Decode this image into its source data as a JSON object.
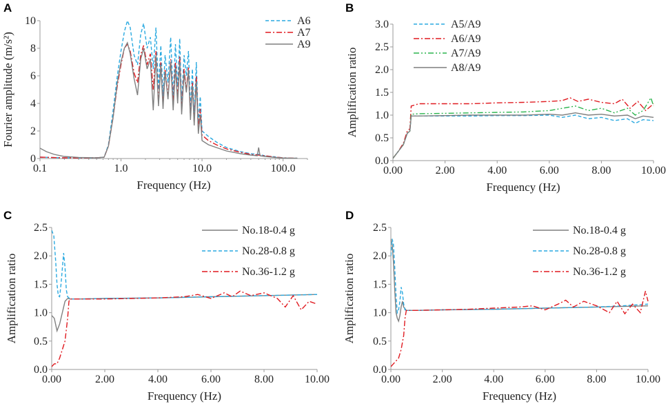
{
  "colors": {
    "gray": "#7f7f7f",
    "blue": "#29a9e0",
    "red": "#e0191f",
    "green": "#28b34b"
  },
  "chart_data": [
    {
      "panel": "A",
      "type": "line",
      "xscale": "log",
      "xlabel": "Frequency (Hz)",
      "ylabel": "Fourier amplitude (m/s²)",
      "xlim": [
        0.1,
        200
      ],
      "ylim": [
        0,
        10
      ],
      "xticks": [
        0.1,
        1,
        10,
        100
      ],
      "xtick_labels": [
        "0.1",
        "1.0",
        "10.0",
        "100.0"
      ],
      "yticks": [
        0,
        2,
        4,
        6,
        8,
        10
      ],
      "ytick_labels": [
        "0",
        "2",
        "4",
        "6",
        "8",
        "10"
      ],
      "legend_position": "top-right",
      "series": [
        {
          "name": "A6",
          "color": "#29a9e0",
          "dash": "dashed",
          "x": [
            0.1,
            0.2,
            0.5,
            0.62,
            0.7,
            0.8,
            0.9,
            1.0,
            1.1,
            1.2,
            1.3,
            1.45,
            1.6,
            1.75,
            1.9,
            2.1,
            2.3,
            2.5,
            2.7,
            2.9,
            3.1,
            3.3,
            3.5,
            3.8,
            4.1,
            4.4,
            4.7,
            5.0,
            5.3,
            5.6,
            6.0,
            6.4,
            6.8,
            7.2,
            7.6,
            8.0,
            8.5,
            9.0,
            9.5,
            10,
            12,
            15,
            20,
            30,
            40,
            50,
            60,
            80,
            100,
            150
          ],
          "y": [
            0.1,
            0.05,
            0.05,
            0.1,
            1.0,
            3.5,
            6.0,
            7.8,
            9.2,
            10.0,
            9.5,
            7.5,
            6.8,
            9.0,
            9.8,
            8.0,
            8.8,
            6.5,
            9.5,
            5.0,
            8.2,
            4.5,
            7.5,
            5.5,
            8.8,
            4.5,
            8.3,
            5.2,
            8.7,
            4.0,
            7.5,
            6.0,
            7.8,
            3.5,
            6.5,
            3.0,
            7.0,
            2.5,
            4.5,
            2.0,
            1.6,
            1.2,
            0.8,
            0.5,
            0.35,
            0.3,
            0.2,
            0.12,
            0.05,
            0.02
          ]
        },
        {
          "name": "A7",
          "color": "#e0191f",
          "dash": "dashdot",
          "x": [
            0.1,
            0.2,
            0.5,
            0.62,
            0.7,
            0.8,
            0.9,
            1.0,
            1.1,
            1.2,
            1.3,
            1.45,
            1.6,
            1.75,
            1.9,
            2.1,
            2.3,
            2.5,
            2.7,
            2.9,
            3.1,
            3.3,
            3.5,
            3.8,
            4.1,
            4.4,
            4.7,
            5.0,
            5.3,
            5.6,
            6.0,
            6.4,
            6.8,
            7.2,
            7.6,
            8.0,
            8.5,
            9.0,
            9.5,
            10,
            12,
            15,
            20,
            30,
            40,
            50,
            60,
            80,
            100,
            150
          ],
          "y": [
            0.1,
            0.05,
            0.05,
            0.1,
            0.9,
            3.0,
            5.3,
            6.8,
            8.0,
            8.3,
            7.8,
            6.2,
            5.5,
            7.5,
            8.2,
            6.8,
            7.6,
            5.0,
            7.8,
            4.0,
            7.0,
            3.8,
            6.5,
            4.5,
            7.2,
            4.0,
            7.0,
            4.3,
            7.4,
            3.5,
            6.5,
            5.0,
            6.6,
            3.0,
            5.5,
            2.6,
            6.0,
            2.2,
            3.6,
            1.7,
            1.3,
            1.0,
            0.7,
            0.45,
            0.3,
            0.25,
            0.2,
            0.1,
            0.05,
            0.02
          ]
        },
        {
          "name": "A9",
          "color": "#7f7f7f",
          "dash": "solid",
          "x": [
            0.1,
            0.12,
            0.15,
            0.2,
            0.3,
            0.5,
            0.62,
            0.7,
            0.8,
            0.9,
            1.0,
            1.1,
            1.2,
            1.3,
            1.45,
            1.6,
            1.75,
            1.9,
            2.1,
            2.3,
            2.5,
            2.7,
            2.9,
            3.1,
            3.3,
            3.5,
            3.8,
            4.1,
            4.4,
            4.7,
            5.0,
            5.3,
            5.6,
            6.0,
            6.4,
            6.8,
            7.2,
            7.6,
            8.0,
            8.5,
            9.0,
            9.5,
            10,
            12,
            15,
            20,
            30,
            40,
            48,
            50,
            52,
            60,
            80,
            100,
            150
          ],
          "y": [
            0.75,
            0.5,
            0.3,
            0.15,
            0.08,
            0.05,
            0.1,
            0.9,
            3.0,
            5.5,
            7.0,
            8.0,
            8.4,
            7.6,
            5.8,
            4.6,
            7.2,
            8.0,
            6.5,
            7.2,
            3.5,
            7.5,
            3.8,
            6.8,
            3.6,
            6.3,
            4.3,
            7.0,
            3.5,
            6.6,
            4.0,
            7.0,
            3.2,
            6.2,
            4.8,
            6.4,
            2.8,
            5.3,
            2.4,
            5.6,
            1.8,
            3.2,
            1.3,
            1.0,
            0.8,
            0.55,
            0.35,
            0.25,
            0.2,
            0.8,
            0.2,
            0.15,
            0.08,
            0.04,
            0.02
          ]
        }
      ]
    },
    {
      "panel": "B",
      "type": "line",
      "xlabel": "Frequency (Hz)",
      "ylabel": "Amplification ratio",
      "xlim": [
        0,
        10
      ],
      "ylim": [
        0,
        3
      ],
      "xticks": [
        0,
        2,
        4,
        6,
        8,
        10
      ],
      "xtick_labels": [
        "0.00",
        "2.00",
        "4.00",
        "6.00",
        "8.00",
        "10.00"
      ],
      "yticks": [
        0,
        0.5,
        1,
        1.5,
        2,
        2.5,
        3
      ],
      "ytick_labels": [
        "0.0",
        "0.5",
        "1.0",
        "1.5",
        "2.0",
        "2.5",
        "3.0"
      ],
      "legend_position": "top-left",
      "series": [
        {
          "name": "A5/A9",
          "color": "#29a9e0",
          "dash": "dashed",
          "x": [
            0,
            0.2,
            0.4,
            0.55,
            0.65,
            0.7,
            1,
            2,
            3,
            4,
            5,
            6,
            6.5,
            7,
            7.5,
            8,
            8.5,
            9,
            9.3,
            9.6,
            10
          ],
          "y": [
            0.05,
            0.2,
            0.35,
            0.6,
            0.65,
            0.98,
            0.98,
            0.98,
            0.98,
            0.99,
            0.99,
            1.0,
            0.95,
            1.0,
            0.92,
            0.95,
            0.88,
            0.92,
            0.82,
            0.9,
            0.88
          ]
        },
        {
          "name": "A6/A9",
          "color": "#e0191f",
          "dash": "dashdot",
          "x": [
            0,
            0.2,
            0.4,
            0.55,
            0.65,
            0.7,
            1,
            2,
            3,
            4,
            5,
            6,
            6.5,
            6.8,
            7.1,
            7.5,
            8,
            8.5,
            8.8,
            9.1,
            9.4,
            9.7,
            10
          ],
          "y": [
            0.05,
            0.2,
            0.38,
            0.65,
            0.7,
            1.2,
            1.25,
            1.25,
            1.25,
            1.27,
            1.28,
            1.3,
            1.32,
            1.38,
            1.3,
            1.35,
            1.28,
            1.25,
            1.35,
            1.15,
            1.3,
            1.1,
            1.25
          ]
        },
        {
          "name": "A7/A9",
          "color": "#28b34b",
          "dash": "dashdotdot",
          "x": [
            0,
            0.2,
            0.4,
            0.55,
            0.65,
            0.7,
            1,
            2,
            3,
            4,
            5,
            6,
            6.5,
            7,
            7.5,
            8,
            8.5,
            9,
            9.3,
            9.6,
            9.9,
            10
          ],
          "y": [
            0.05,
            0.2,
            0.35,
            0.6,
            0.65,
            1.02,
            1.03,
            1.04,
            1.05,
            1.06,
            1.07,
            1.1,
            1.15,
            1.2,
            1.1,
            1.15,
            1.05,
            1.15,
            1.0,
            1.1,
            1.38,
            1.2
          ]
        },
        {
          "name": "A8/A9",
          "color": "#7f7f7f",
          "dash": "solid",
          "x": [
            0,
            0.2,
            0.4,
            0.55,
            0.65,
            0.7,
            1,
            2,
            3,
            4,
            5,
            6,
            6.5,
            7,
            7.5,
            8,
            8.5,
            9,
            9.3,
            9.6,
            10
          ],
          "y": [
            0.05,
            0.2,
            0.35,
            0.6,
            0.65,
            0.98,
            0.98,
            0.99,
            1.0,
            1.0,
            1.0,
            1.02,
            1.0,
            1.05,
            1.0,
            1.02,
            0.98,
            1.0,
            0.92,
            0.98,
            0.95
          ]
        }
      ]
    },
    {
      "panel": "C",
      "type": "line",
      "xlabel": "Frequency (Hz)",
      "ylabel": "Amplification ratio",
      "xlim": [
        0,
        10
      ],
      "ylim": [
        0,
        2.5
      ],
      "xticks": [
        0,
        2,
        4,
        6,
        8,
        10
      ],
      "xtick_labels": [
        "0.00",
        "2.00",
        "4.00",
        "6.00",
        "8.00",
        "10.00"
      ],
      "yticks": [
        0,
        0.5,
        1,
        1.5,
        2,
        2.5
      ],
      "ytick_labels": [
        "0.0",
        "0.5",
        "1.0",
        "1.5",
        "2.0",
        "2.5"
      ],
      "legend_position": "top-right",
      "series": [
        {
          "name": "No.18-0.4 g",
          "color": "#7f7f7f",
          "dash": "solid",
          "x": [
            0,
            0.1,
            0.2,
            0.3,
            0.4,
            0.5,
            0.6,
            0.7,
            1,
            2,
            4,
            6,
            8,
            9,
            10
          ],
          "y": [
            0.95,
            0.9,
            0.68,
            0.8,
            1.0,
            1.2,
            1.25,
            1.24,
            1.24,
            1.25,
            1.26,
            1.28,
            1.3,
            1.31,
            1.32
          ]
        },
        {
          "name": "No.28-0.8 g",
          "color": "#29a9e0",
          "dash": "dashed",
          "x": [
            0,
            0.08,
            0.15,
            0.2,
            0.25,
            0.3,
            0.35,
            0.45,
            0.5,
            0.55,
            0.6,
            0.7,
            1,
            2,
            4,
            6,
            8,
            9,
            10
          ],
          "y": [
            2.45,
            2.35,
            1.9,
            1.5,
            1.3,
            1.28,
            1.5,
            2.05,
            1.8,
            1.4,
            1.28,
            1.24,
            1.24,
            1.25,
            1.26,
            1.28,
            1.3,
            1.31,
            1.32
          ]
        },
        {
          "name": "No.36-1.2 g",
          "color": "#e0191f",
          "dash": "dashdot",
          "x": [
            0,
            0.1,
            0.2,
            0.3,
            0.4,
            0.5,
            0.6,
            0.65,
            0.7,
            1,
            2,
            3,
            4,
            5,
            5.5,
            6,
            6.5,
            6.8,
            7.1,
            7.5,
            8,
            8.5,
            8.8,
            9.1,
            9.4,
            9.7,
            10
          ],
          "y": [
            0.05,
            0.1,
            0.1,
            0.2,
            0.35,
            0.5,
            0.9,
            1.2,
            1.24,
            1.24,
            1.24,
            1.25,
            1.26,
            1.28,
            1.32,
            1.25,
            1.35,
            1.28,
            1.38,
            1.3,
            1.35,
            1.25,
            1.1,
            1.3,
            1.05,
            1.2,
            1.15
          ]
        }
      ]
    },
    {
      "panel": "D",
      "type": "line",
      "xlabel": "Frequency (Hz)",
      "ylabel": "Amplification ratio",
      "xlim": [
        0,
        10
      ],
      "ylim": [
        0,
        2.5
      ],
      "xticks": [
        0,
        2,
        4,
        6,
        8,
        10
      ],
      "xtick_labels": [
        "0.00",
        "2.00",
        "4.00",
        "6.00",
        "8.00",
        "10.00"
      ],
      "yticks": [
        0,
        0.5,
        1,
        1.5,
        2,
        2.5
      ],
      "ytick_labels": [
        "0.0",
        "0.5",
        "1.0",
        "1.5",
        "2.0",
        "2.5"
      ],
      "legend_position": "top-right",
      "series": [
        {
          "name": "No.18-0.4 g",
          "color": "#7f7f7f",
          "dash": "solid",
          "x": [
            0,
            0.05,
            0.1,
            0.15,
            0.2,
            0.25,
            0.3,
            0.35,
            0.4,
            0.45,
            0.5,
            0.6,
            1,
            2,
            4,
            6,
            8,
            9,
            10
          ],
          "y": [
            2.3,
            2.2,
            1.9,
            1.4,
            1.0,
            0.9,
            0.85,
            0.95,
            1.1,
            1.2,
            1.1,
            1.04,
            1.04,
            1.05,
            1.06,
            1.08,
            1.1,
            1.11,
            1.12
          ]
        },
        {
          "name": "No.28-0.8 g",
          "color": "#29a9e0",
          "dash": "dashed",
          "x": [
            0,
            0.05,
            0.1,
            0.15,
            0.2,
            0.25,
            0.3,
            0.35,
            0.4,
            0.45,
            0.5,
            0.55,
            0.6,
            1,
            2,
            4,
            6,
            8,
            9,
            10
          ],
          "y": [
            2.0,
            2.3,
            2.2,
            1.8,
            1.3,
            1.0,
            1.05,
            1.2,
            1.45,
            1.35,
            1.15,
            1.05,
            1.04,
            1.04,
            1.05,
            1.06,
            1.08,
            1.1,
            1.12,
            1.15
          ]
        },
        {
          "name": "No.36-1.2 g",
          "color": "#e0191f",
          "dash": "dashdot",
          "x": [
            0,
            0.1,
            0.2,
            0.3,
            0.4,
            0.5,
            0.55,
            0.6,
            1,
            2,
            3,
            4,
            5,
            5.5,
            6,
            6.5,
            6.8,
            7.1,
            7.5,
            8,
            8.5,
            8.8,
            9.1,
            9.4,
            9.7,
            9.9,
            10
          ],
          "y": [
            0.05,
            0.1,
            0.15,
            0.2,
            0.35,
            0.6,
            0.9,
            1.04,
            1.04,
            1.05,
            1.06,
            1.08,
            1.1,
            1.12,
            1.05,
            1.15,
            1.22,
            1.1,
            1.2,
            1.12,
            1.0,
            1.2,
            0.98,
            1.15,
            1.0,
            1.38,
            1.2
          ]
        }
      ]
    }
  ]
}
